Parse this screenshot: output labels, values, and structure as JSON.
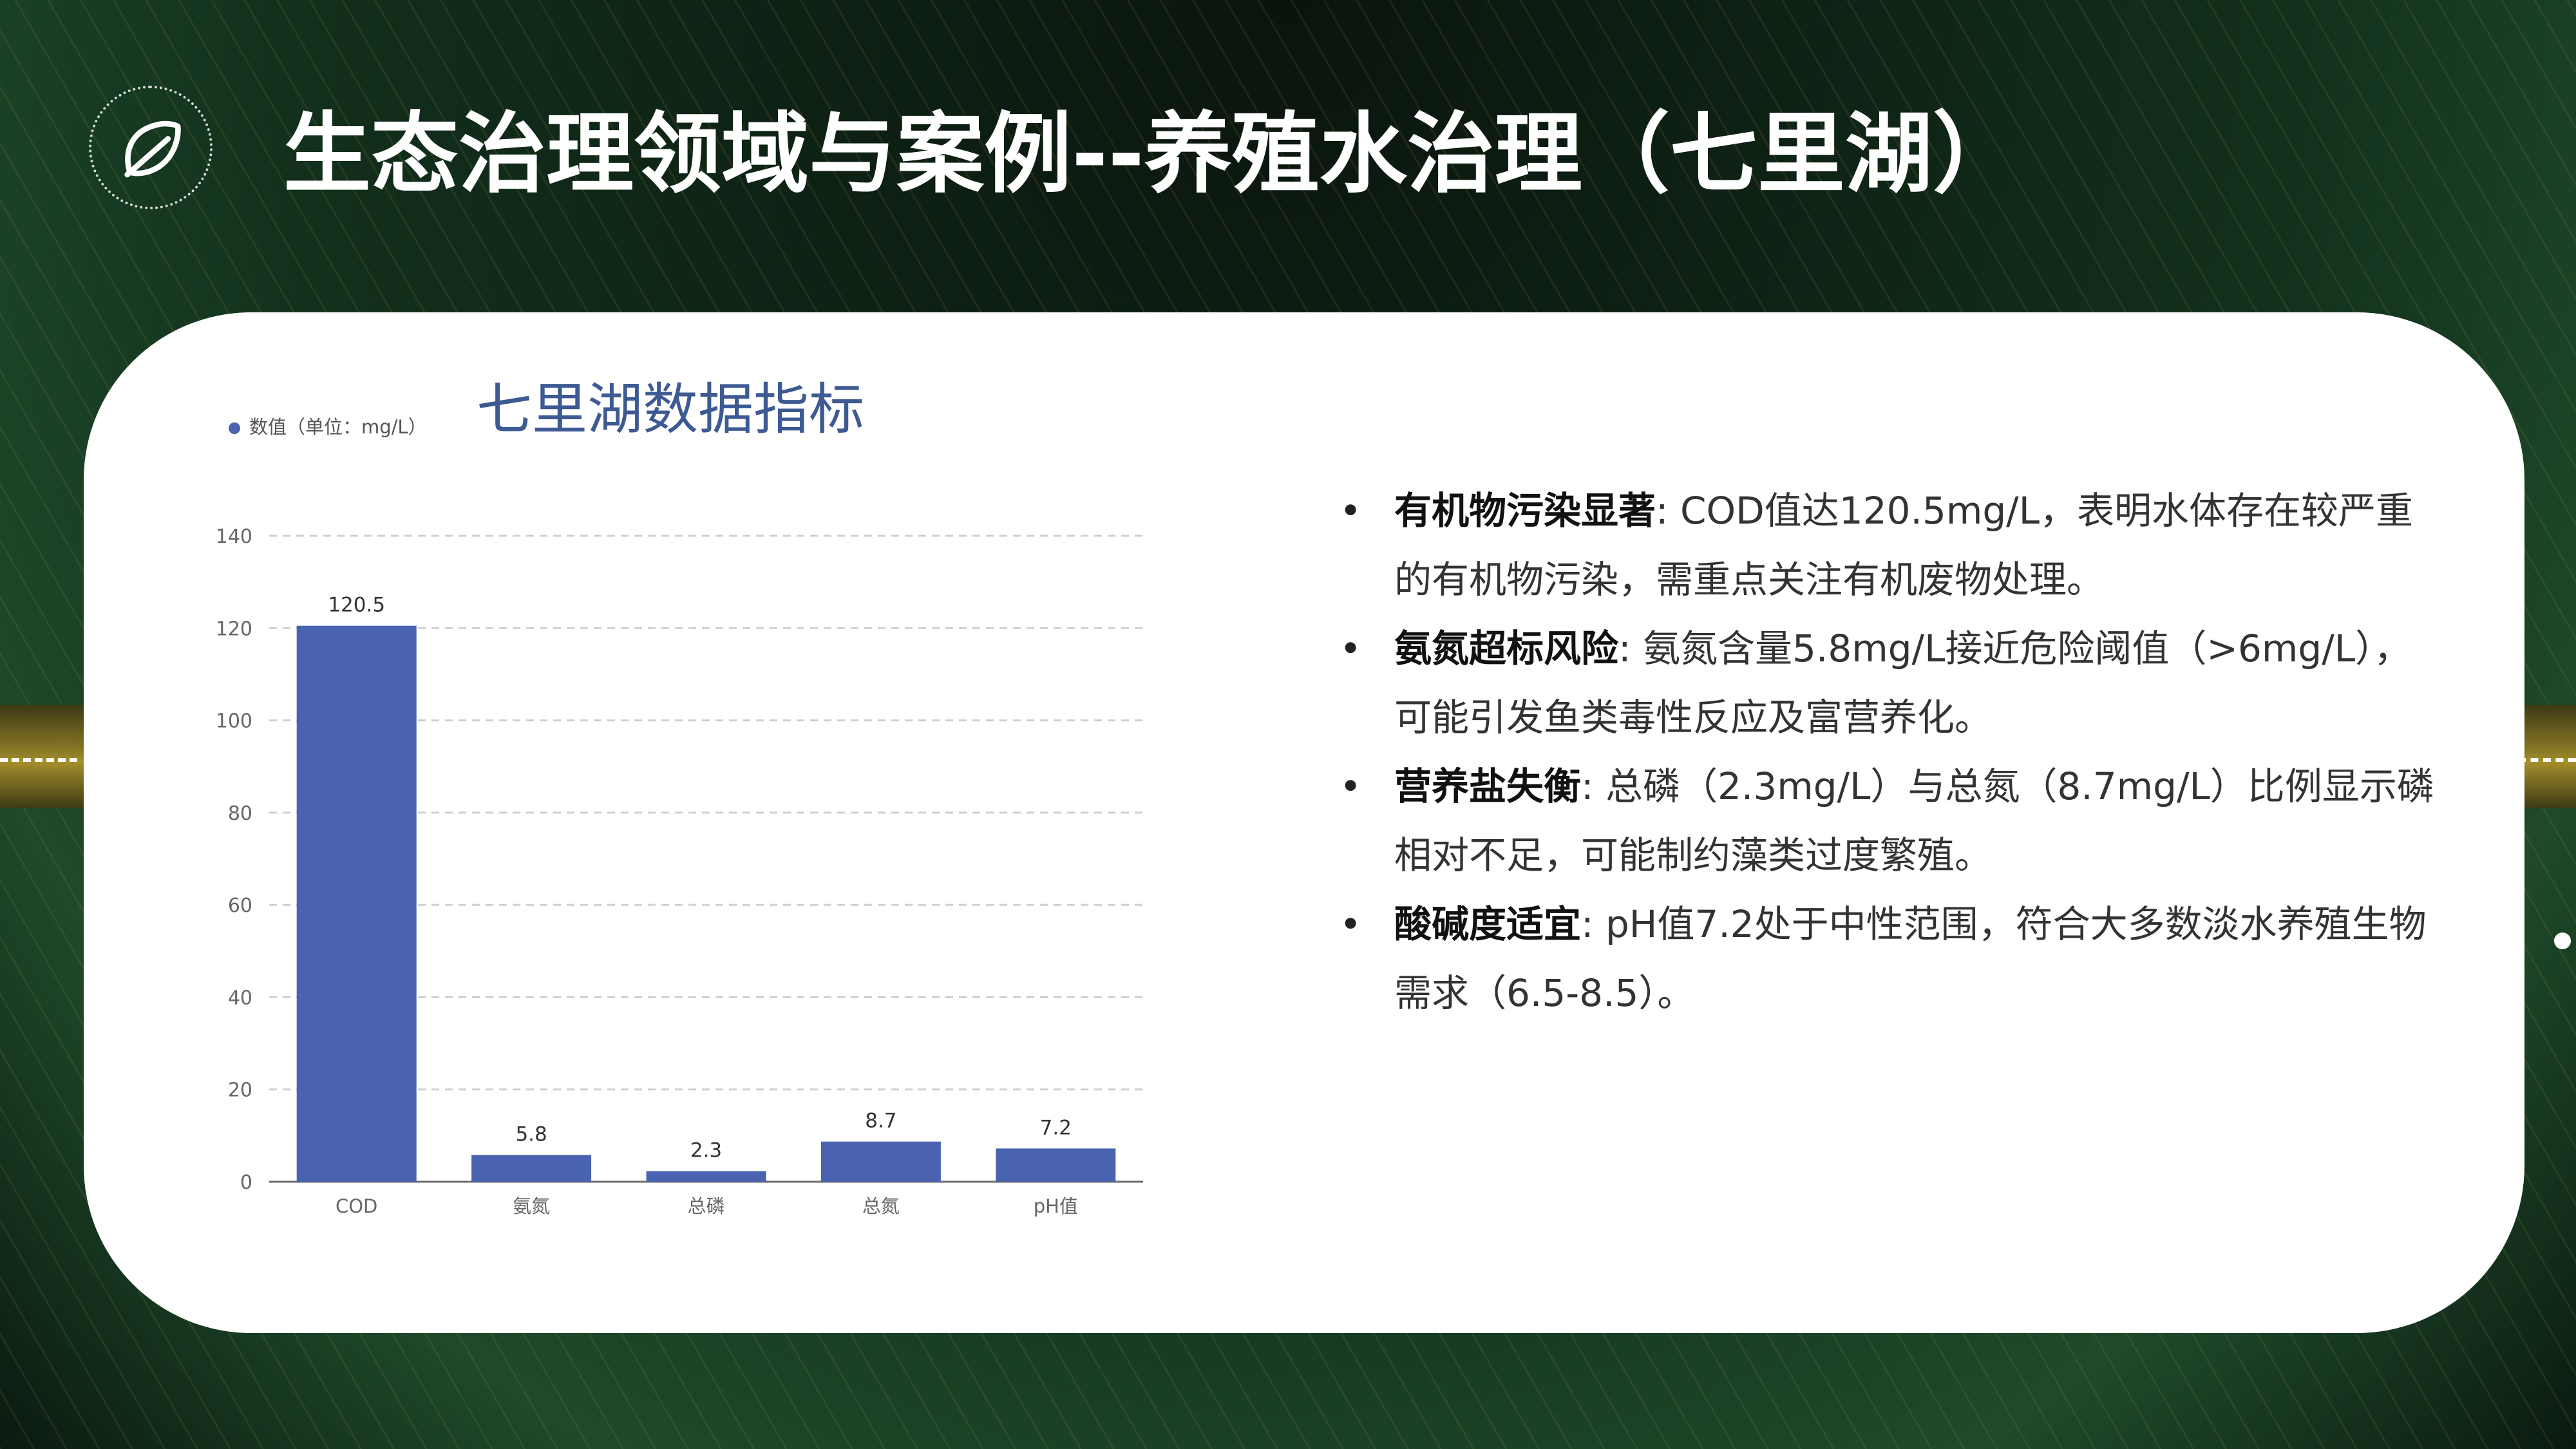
{
  "header": {
    "title": "生态治理领域与案例--养殖水治理（七里湖）",
    "logo_icon": "leaf-icon"
  },
  "colors": {
    "bar": "#4a63b0",
    "chart_title": "#3d5a92",
    "accent_gold": "#a58f2c"
  },
  "chart_data": {
    "type": "bar",
    "title": "七里湖数据指标",
    "legend": "数值（单位：mg/L）",
    "legend_position": "top-left",
    "categories": [
      "COD",
      "氨氮",
      "总磷",
      "总氮",
      "pH值"
    ],
    "series": [
      {
        "name": "数值（单位：mg/L）",
        "values": [
          120.5,
          5.8,
          2.3,
          8.7,
          7.2
        ]
      }
    ],
    "data_labels": [
      "120.5",
      "5.8",
      "2.3",
      "8.7",
      "7.2"
    ],
    "yticks": [
      0,
      20,
      40,
      60,
      80,
      100,
      120,
      140
    ],
    "ylim": [
      0,
      140
    ],
    "grid": "horizontal-dashed"
  },
  "bullets": [
    {
      "heading": "有机物污染显著",
      "text": ": COD值达120.5mg/L，表明水体存在较严重的有机物污染，需重点关注有机废物处理。"
    },
    {
      "heading": "氨氮超标风险",
      "text": ": 氨氮含量5.8mg/L接近危险阈值（>6mg/L），可能引发鱼类毒性反应及富营养化。"
    },
    {
      "heading": "营养盐失衡",
      "text": ": 总磷（2.3mg/L）与总氮（8.7mg/L）比例显示磷相对不足，可能制约藻类过度繁殖。"
    },
    {
      "heading": "酸碱度适宜",
      "text": ": pH值7.2处于中性范围，符合大多数淡水养殖生物需求（6.5-8.5）。"
    }
  ]
}
